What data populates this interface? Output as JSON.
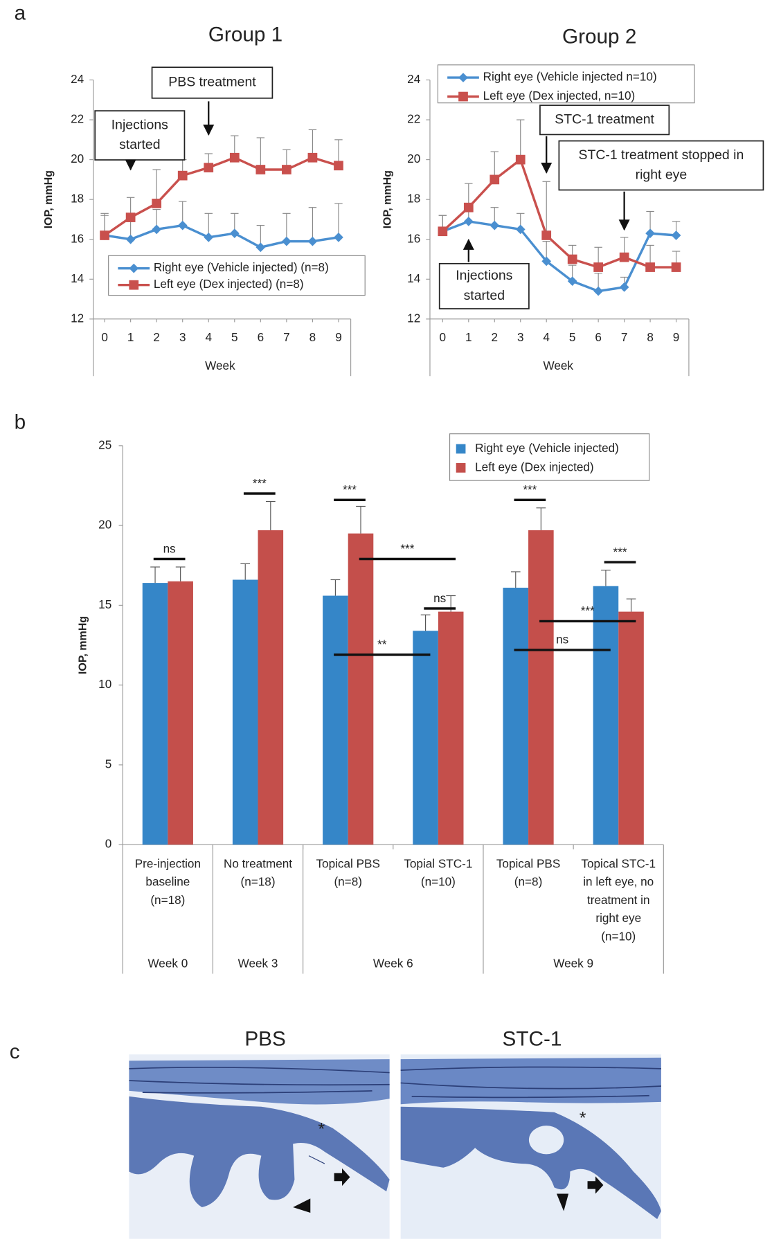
{
  "panel_labels": [
    "a",
    "b",
    "c"
  ],
  "chart_data": [
    {
      "type": "line",
      "title": "Group 1",
      "xlabel": "Week",
      "ylabel": "IOP, mmHg",
      "x": [
        0,
        1,
        2,
        3,
        4,
        5,
        6,
        7,
        8,
        9
      ],
      "xlim": [
        -0.43,
        9.47
      ],
      "xticks": [
        0,
        1,
        2,
        3,
        4,
        5,
        6,
        7,
        8,
        9
      ],
      "ylim": [
        12,
        24
      ],
      "yticks": [
        12,
        14,
        16,
        18,
        20,
        22,
        24
      ],
      "series": [
        {
          "name": "Right eye (Vehicle injected) (n=8)",
          "color": "#4a8fd0",
          "marker": "diamond",
          "values": [
            16.2,
            16.0,
            16.5,
            16.7,
            16.1,
            16.3,
            15.6,
            15.9,
            15.9,
            16.1
          ],
          "errors": [
            1.0,
            1.0,
            1.0,
            1.2,
            1.2,
            1.0,
            1.1,
            1.4,
            1.7,
            1.7
          ]
        },
        {
          "name": "Left eye (Dex injected) (n=8)",
          "color": "#c9504d",
          "marker": "square",
          "values": [
            16.2,
            17.1,
            17.8,
            19.2,
            19.6,
            20.1,
            19.5,
            19.5,
            20.1,
            19.7
          ],
          "errors": [
            1.1,
            1.0,
            1.7,
            0.8,
            0.7,
            1.1,
            1.6,
            1.0,
            1.4,
            1.3
          ]
        }
      ],
      "annotations": [
        {
          "lines": [
            "Injections",
            "started"
          ],
          "x": 1
        },
        {
          "lines": [
            "PBS treatment"
          ],
          "x": 4
        }
      ]
    },
    {
      "type": "line",
      "title": "Group 2",
      "xlabel": "Week",
      "ylabel": "IOP, mmHg",
      "x": [
        0,
        1,
        2,
        3,
        4,
        5,
        6,
        7,
        8,
        9
      ],
      "xlim": [
        -0.49,
        9.49
      ],
      "xticks": [
        0,
        1,
        2,
        3,
        4,
        5,
        6,
        7,
        8,
        9
      ],
      "ylim": [
        12,
        24
      ],
      "yticks": [
        12,
        14,
        16,
        18,
        20,
        22,
        24
      ],
      "series": [
        {
          "name": "Right eye (Vehicle injected n=10)",
          "color": "#4a8fd0",
          "marker": "diamond",
          "values": [
            16.4,
            16.9,
            16.7,
            16.5,
            14.9,
            13.9,
            13.4,
            13.6,
            16.3,
            16.2
          ],
          "errors": [
            0.8,
            0.9,
            0.9,
            0.8,
            1.0,
            0.8,
            0.9,
            0.5,
            1.1,
            0.7
          ]
        },
        {
          "name": "Left eye (Dex injected, n=10)",
          "color": "#c9504d",
          "marker": "square",
          "values": [
            16.4,
            17.6,
            19.0,
            20.0,
            16.2,
            15.0,
            14.6,
            15.1,
            14.6,
            14.6
          ],
          "errors": [
            0.8,
            1.2,
            1.4,
            2.0,
            2.7,
            0.7,
            1.0,
            1.0,
            1.1,
            0.8
          ]
        }
      ],
      "annotations": [
        {
          "lines": [
            "Injections",
            "started"
          ],
          "x": 1
        },
        {
          "lines": [
            "STC-1 treatment"
          ],
          "x": 4
        },
        {
          "lines": [
            "STC-1 treatment stopped in",
            "right eye"
          ],
          "x": 7
        }
      ]
    },
    {
      "type": "bar",
      "ylabel": "IOP, mmHg",
      "categories": [
        [
          "Pre-injection",
          "baseline",
          "(n=18)"
        ],
        [
          "No treatment",
          "(n=18)"
        ],
        [
          "Topical PBS",
          "(n=8)"
        ],
        [
          "Topial STC-1",
          "(n=10)"
        ],
        [
          "Topical PBS",
          "(n=8)"
        ],
        [
          "Topical STC-1",
          "in left eye, no",
          "treatment in",
          "right eye",
          "(n=10)"
        ]
      ],
      "groups": [
        {
          "label": "Week 0",
          "span": 1
        },
        {
          "label": "Week 3",
          "span": 1
        },
        {
          "label": "Week 6",
          "span": 2
        },
        {
          "label": "Week 9",
          "span": 2
        }
      ],
      "ylim": [
        0,
        25
      ],
      "yticks": [
        0,
        5,
        10,
        15,
        20,
        25
      ],
      "series": [
        {
          "name": "Right eye (Vehicle injected)",
          "color": "#3586c8",
          "values": [
            16.4,
            16.6,
            15.6,
            13.4,
            16.1,
            16.2
          ],
          "errors": [
            1.0,
            1.0,
            1.0,
            1.0,
            1.0,
            1.0
          ]
        },
        {
          "name": "Left eye (Dex injected)",
          "color": "#c44f4b",
          "values": [
            16.5,
            19.7,
            19.5,
            14.6,
            19.7,
            14.6
          ],
          "errors": [
            0.9,
            1.8,
            1.7,
            1.0,
            1.4,
            0.8
          ]
        }
      ],
      "significance": [
        {
          "label": "ns",
          "y": 17.9,
          "from": [
            0,
            0
          ],
          "to": [
            0,
            1
          ]
        },
        {
          "label": "***",
          "y": 22.0,
          "from": [
            1,
            0
          ],
          "to": [
            1,
            1
          ]
        },
        {
          "label": "***",
          "y": 21.6,
          "from": [
            2,
            0
          ],
          "to": [
            2,
            1
          ]
        },
        {
          "label": "***",
          "y": 17.9,
          "from": [
            2,
            1
          ],
          "to": [
            3,
            1
          ]
        },
        {
          "label": "ns",
          "y": 14.8,
          "from": [
            3,
            0
          ],
          "to": [
            3,
            1
          ]
        },
        {
          "label": "**",
          "y": 11.9,
          "from": [
            2,
            0
          ],
          "to": [
            3,
            0
          ]
        },
        {
          "label": "***",
          "y": 21.6,
          "from": [
            4,
            0
          ],
          "to": [
            4,
            1
          ]
        },
        {
          "label": "***",
          "y": 14.0,
          "from": [
            4,
            1
          ],
          "to": [
            5,
            1
          ]
        },
        {
          "label": "ns",
          "y": 12.2,
          "from": [
            4,
            0
          ],
          "to": [
            5,
            0
          ]
        },
        {
          "label": "***",
          "y": 17.7,
          "from": [
            5,
            0
          ],
          "to": [
            5,
            1
          ]
        }
      ]
    }
  ],
  "histology": {
    "titles": [
      "PBS",
      "STC-1"
    ],
    "marks": [
      "*",
      "*"
    ]
  }
}
